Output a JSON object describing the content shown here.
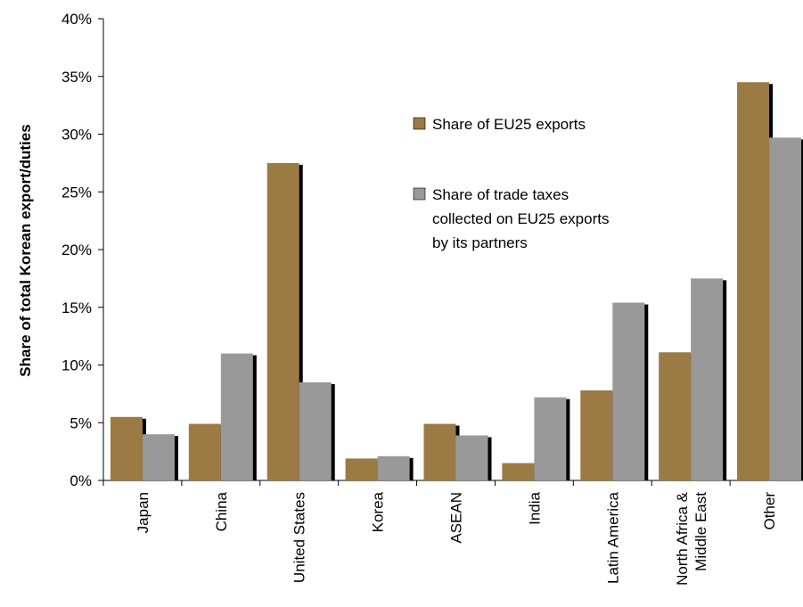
{
  "chart_data": {
    "type": "bar",
    "ylabel": "Share of total Korean export/duties",
    "xlabel": "",
    "ylim": [
      0,
      40
    ],
    "y_ticks": [
      "0%",
      "5%",
      "10%",
      "15%",
      "20%",
      "25%",
      "30%",
      "35%",
      "40%"
    ],
    "categories": [
      [
        "Japan"
      ],
      [
        "China"
      ],
      [
        "United States"
      ],
      [
        "Korea"
      ],
      [
        "ASEAN"
      ],
      [
        "India"
      ],
      [
        "Latin America"
      ],
      [
        "North Africa &",
        "Middle East"
      ],
      [
        "Other"
      ]
    ],
    "series": [
      {
        "name": "Share of EU25 exports",
        "legend_lines": [
          "Share of EU25 exports"
        ],
        "color": "#9b7a44",
        "values": [
          5.5,
          4.9,
          27.5,
          1.9,
          4.9,
          1.5,
          7.8,
          11.1,
          34.5
        ]
      },
      {
        "name": "Share of trade taxes collected on EU25 exports by its partners",
        "legend_lines": [
          "Share of trade taxes",
          "collected on EU25 exports",
          "by its partners"
        ],
        "color": "#999999",
        "values": [
          4.0,
          11.0,
          8.5,
          2.1,
          3.9,
          7.2,
          15.4,
          17.5,
          29.7
        ]
      }
    ],
    "grid": false,
    "legend_position": "center-right, inside plot"
  }
}
